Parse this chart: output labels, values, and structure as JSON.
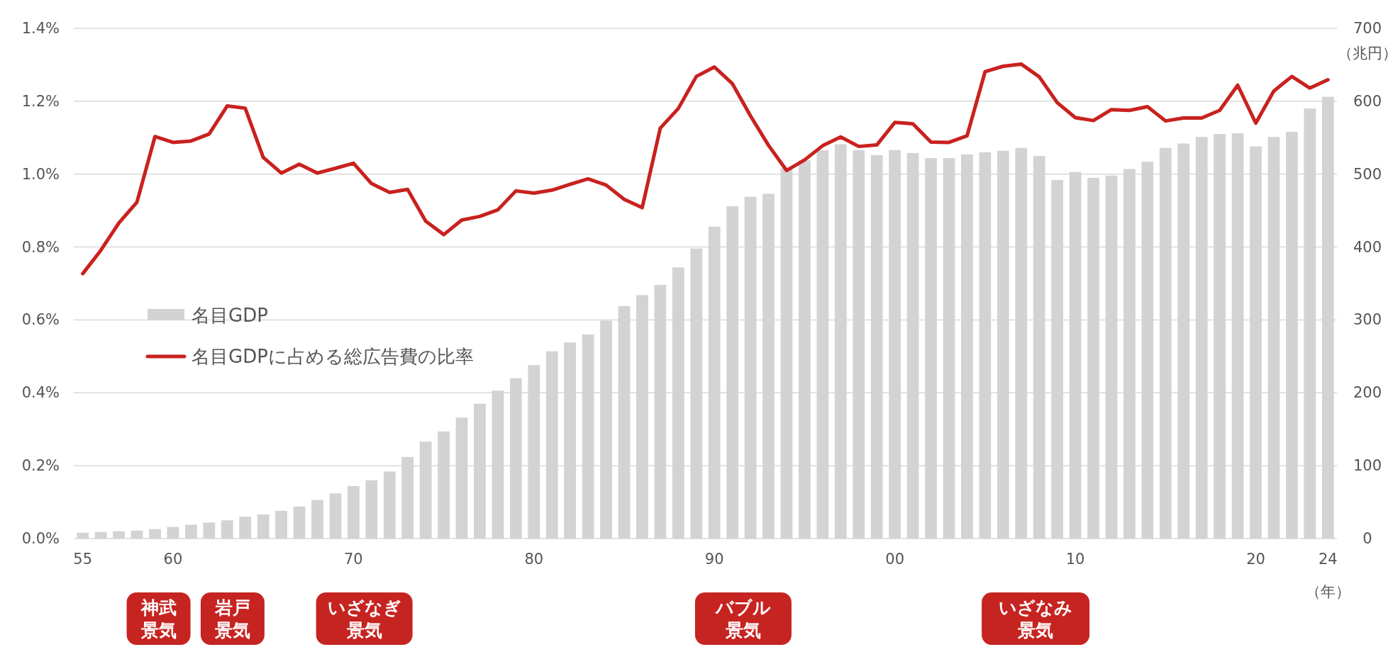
{
  "chart_data": {
    "type": "bar",
    "xlabel": "（年）",
    "y2label": "（兆円）",
    "categories": [
      "55",
      null,
      null,
      null,
      null,
      "60",
      null,
      null,
      null,
      null,
      null,
      null,
      null,
      null,
      null,
      "70",
      null,
      null,
      null,
      null,
      null,
      null,
      null,
      null,
      null,
      "80",
      null,
      null,
      null,
      null,
      null,
      null,
      null,
      null,
      null,
      "90",
      null,
      null,
      null,
      null,
      null,
      null,
      null,
      null,
      null,
      "00",
      null,
      null,
      null,
      null,
      null,
      null,
      null,
      null,
      null,
      "10",
      null,
      null,
      null,
      null,
      null,
      null,
      null,
      null,
      null,
      "20",
      null,
      null,
      null,
      "24"
    ],
    "series": [
      {
        "name": "名目GDP",
        "axis": "y2",
        "color": "#d3d3d3",
        "values": [
          8,
          9,
          10,
          11,
          13,
          16,
          19,
          22,
          25,
          30,
          33,
          38,
          44,
          53,
          62,
          72,
          80,
          92,
          112,
          133,
          147,
          166,
          185,
          203,
          220,
          238,
          257,
          269,
          280,
          299,
          319,
          334,
          348,
          372,
          398,
          428,
          456,
          469,
          473,
          508,
          519,
          533,
          541,
          533,
          526,
          533,
          529,
          522,
          522,
          527,
          530,
          532,
          536,
          525,
          492,
          503,
          495,
          498,
          507,
          517,
          536,
          542,
          551,
          555,
          556,
          538,
          551,
          558,
          590,
          606
        ]
      },
      {
        "name": "名目GDPに占める総広告費の比率",
        "type": "line",
        "axis": "y",
        "color": "#c8221f",
        "values": [
          0.727,
          0.791,
          0.866,
          0.923,
          1.103,
          1.087,
          1.091,
          1.11,
          1.187,
          1.181,
          1.046,
          1.003,
          1.027,
          1.003,
          1.016,
          1.03,
          0.974,
          0.95,
          0.958,
          0.871,
          0.834,
          0.874,
          0.884,
          0.902,
          0.954,
          0.948,
          0.956,
          0.972,
          0.987,
          0.97,
          0.931,
          0.908,
          1.126,
          1.18,
          1.268,
          1.294,
          1.248,
          1.16,
          1.079,
          1.01,
          1.039,
          1.078,
          1.102,
          1.076,
          1.08,
          1.142,
          1.138,
          1.088,
          1.087,
          1.105,
          1.281,
          1.296,
          1.302,
          1.267,
          1.196,
          1.155,
          1.147,
          1.177,
          1.175,
          1.185,
          1.146,
          1.154,
          1.154,
          1.175,
          1.244,
          1.14,
          1.228,
          1.268,
          1.236,
          1.259
        ]
      }
    ],
    "ylim": [
      0,
      1.4
    ],
    "yticks": [
      {
        "value": 0,
        "label": "0.0%"
      },
      {
        "value": 0.2,
        "label": "0.2%"
      },
      {
        "value": 0.4,
        "label": "0.4%"
      },
      {
        "value": 0.6,
        "label": "0.6%"
      },
      {
        "value": 0.8,
        "label": "0.8%"
      },
      {
        "value": 1.0,
        "label": "1.0%"
      },
      {
        "value": 1.2,
        "label": "1.2%"
      },
      {
        "value": 1.4,
        "label": "1.4%"
      }
    ],
    "y2lim": [
      0,
      700
    ],
    "y2ticks": [
      0,
      100,
      200,
      300,
      400,
      500,
      600,
      700
    ],
    "grid": "y",
    "legend": "left",
    "marker": "none",
    "line_style": "solid",
    "annotations": [
      "神武景気",
      "岩戸景気",
      "いざなぎ景気",
      "バブル景気",
      "いざなみ景気"
    ]
  }
}
